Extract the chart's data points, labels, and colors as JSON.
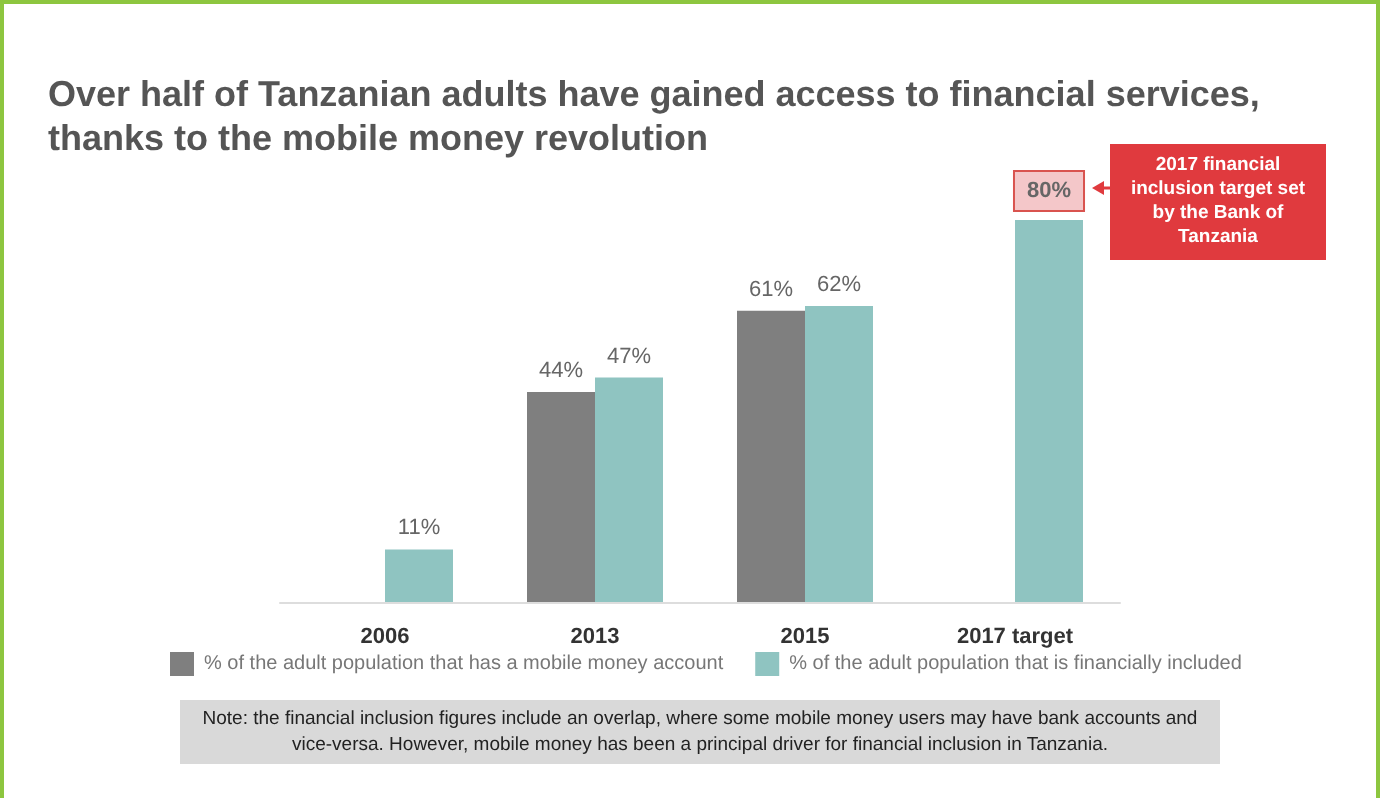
{
  "chart_data": {
    "type": "bar",
    "title": "Over half of Tanzanian adults have gained access to financial services, thanks to the mobile money revolution",
    "categories": [
      "2006",
      "2013",
      "2015",
      "2017 target"
    ],
    "series": [
      {
        "name": "% of the adult population that has a mobile money account",
        "color": "#7f7f7f",
        "values": [
          null,
          44,
          61,
          null
        ],
        "value_labels": [
          null,
          "44%",
          "61%",
          null
        ]
      },
      {
        "name": "% of the adult population that is financially included",
        "color": "#8fc4c1",
        "values": [
          11,
          47,
          62,
          80
        ],
        "value_labels": [
          "11%",
          "47%",
          "62%",
          "80%"
        ]
      }
    ],
    "annotations": [
      "2017 financial inclusion target set by the Bank of Tanzania",
      "Note: the financial inclusion figures include an overlap, where some mobile money users may have bank accounts and vice-versa. However, mobile money has been a principal driver for financial inclusion in Tanzania."
    ],
    "legend": "bottom"
  }
}
